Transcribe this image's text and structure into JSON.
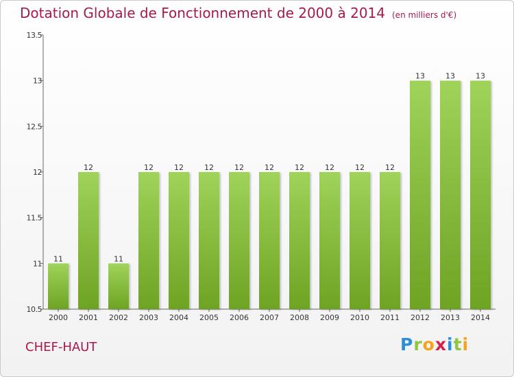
{
  "header": {
    "title": "Dotation Globale de Fonctionnement de 2000 à 2014",
    "unit": "(en milliers d'€)"
  },
  "footer": {
    "commune": "CHEF-HAUT",
    "logo_letters": [
      {
        "char": "P",
        "color": "#2a8fd6"
      },
      {
        "char": "r",
        "color": "#8dc63f"
      },
      {
        "char": "o",
        "color": "#f7a21b"
      },
      {
        "char": "x",
        "color": "#d6204b"
      },
      {
        "char": "i",
        "color": "#2a8fd6"
      },
      {
        "char": "t",
        "color": "#8dc63f"
      },
      {
        "char": "i",
        "color": "#f7a21b"
      }
    ]
  },
  "colors": {
    "bar_top": "#9fd35a",
    "bar_bottom": "#6ea323",
    "axis": "#666666",
    "title": "#a8174e"
  },
  "chart_data": {
    "type": "bar",
    "title": "Dotation Globale de Fonctionnement de 2000 à 2014",
    "xlabel": "",
    "ylabel": "",
    "ylim": [
      10.5,
      13.5
    ],
    "grid": false,
    "yticks": [
      {
        "value": 10.5,
        "label": "10.5"
      },
      {
        "value": 11,
        "label": "11"
      },
      {
        "value": 11.5,
        "label": "11.5"
      },
      {
        "value": 12,
        "label": "12"
      },
      {
        "value": 12.5,
        "label": "12.5"
      },
      {
        "value": 13,
        "label": "13"
      },
      {
        "value": 13.5,
        "label": "13.5"
      }
    ],
    "categories": [
      "2000",
      "2001",
      "2002",
      "2003",
      "2004",
      "2005",
      "2006",
      "2007",
      "2008",
      "2009",
      "2010",
      "2011",
      "2012",
      "2013",
      "2014"
    ],
    "values": [
      11,
      12,
      11,
      12,
      12,
      12,
      12,
      12,
      12,
      12,
      12,
      12,
      13,
      13,
      13
    ],
    "data_labels": [
      "11",
      "12",
      "11",
      "12",
      "12",
      "12",
      "12",
      "12",
      "12",
      "12",
      "12",
      "12",
      "13",
      "13",
      "13"
    ]
  }
}
